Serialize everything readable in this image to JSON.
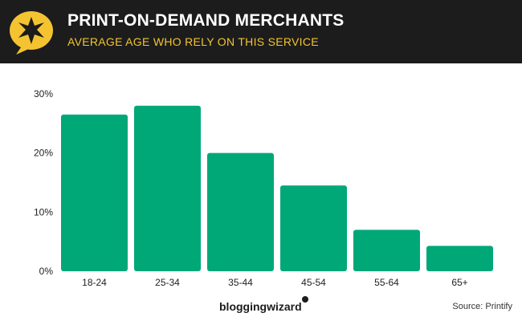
{
  "header": {
    "title": "PRINT-ON-DEMAND MERCHANTS",
    "subtitle": "AVERAGE AGE WHO RELY ON THIS SERVICE",
    "badge_icon": "star-icon"
  },
  "footer": {
    "logo": "bloggingwizard",
    "source": "Source: Printify"
  },
  "colors": {
    "bar": "#00a878",
    "header_bg": "#1c1c1c",
    "accent_yellow": "#f4c430"
  },
  "chart_data": {
    "type": "bar",
    "title": "PRINT-ON-DEMAND MERCHANTS",
    "subtitle": "AVERAGE AGE WHO RELY ON THIS SERVICE",
    "categories": [
      "18-24",
      "25-34",
      "35-44",
      "45-54",
      "55-64",
      "65+"
    ],
    "values": [
      26.5,
      28,
      20,
      14.5,
      7,
      4.3
    ],
    "ylim": [
      0,
      30
    ],
    "yticks": [
      0,
      10,
      20,
      30
    ],
    "ytick_labels": [
      "0%",
      "10%",
      "20%",
      "30%"
    ],
    "xlabel": "",
    "ylabel": "",
    "grid": false,
    "legend": "none"
  }
}
